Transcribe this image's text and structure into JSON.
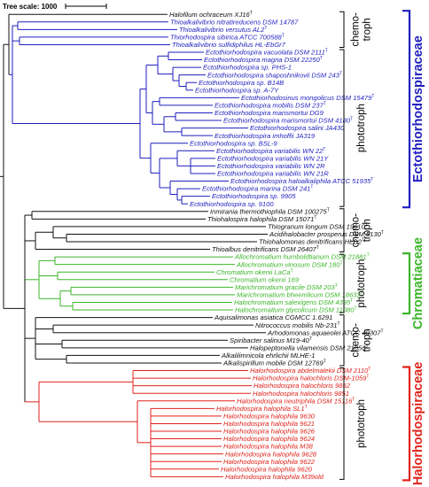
{
  "scale": {
    "label": "Tree scale: 1000"
  },
  "colors": {
    "blue": "#1f1fbf",
    "black": "#111111",
    "green": "#3cb52a",
    "red": "#e0231c"
  },
  "leaves": [
    {
      "name": "Halofilum ochraceum XJ16",
      "sup": "T",
      "color": "black"
    },
    {
      "name": "Thioalkalivibrio nitratireducens DSM 14787",
      "sup": "",
      "color": "blue"
    },
    {
      "name": "Thioalkalivibrio versutus AL2",
      "sup": "T",
      "color": "blue"
    },
    {
      "name": "Thiorhodospira sibirica ATCC 700588",
      "sup": "T",
      "color": "blue"
    },
    {
      "name": "Thioalkalivibrio sulfidiphilus HL-EbGr7",
      "sup": "",
      "color": "blue"
    },
    {
      "name": "Ectothiorhodospira vacuolata DSM 2111",
      "sup": "T",
      "color": "blue"
    },
    {
      "name": "Ectothiorhodospira magna DSM 22250",
      "sup": "T",
      "color": "blue"
    },
    {
      "name": "Ectothiorhodospira sp. PHS-1",
      "sup": "",
      "color": "blue"
    },
    {
      "name": "Ectothiorhodospira shaposhnikovii DSM 243",
      "sup": "T",
      "color": "blue"
    },
    {
      "name": "Ectothiorhodospira sp. B14B",
      "sup": "",
      "color": "blue"
    },
    {
      "name": "Ectothiorhodospira sp. A-7Y",
      "sup": "",
      "color": "blue"
    },
    {
      "name": "Ectothiorhodosinus mongolicus DSM 15479",
      "sup": "T",
      "color": "blue"
    },
    {
      "name": "Ectothiorhodospira mobilis DSM 237",
      "sup": "T",
      "color": "blue"
    },
    {
      "name": "Ectothiorhodospira marismortui DG9",
      "sup": "",
      "color": "blue"
    },
    {
      "name": "Ectothiorhodospira marismortui DSM 4180",
      "sup": "T",
      "color": "blue"
    },
    {
      "name": "Ectothiorhodospira salini JA430",
      "sup": "",
      "color": "blue"
    },
    {
      "name": "Ectothiorhodospira imhoffii JA319",
      "sup": "",
      "color": "blue"
    },
    {
      "name": "Ectothiorhodospira sp. BSL-9",
      "sup": "",
      "color": "blue"
    },
    {
      "name": "Ectothiorhodospira variabilis WN 22",
      "sup": "T",
      "color": "blue"
    },
    {
      "name": "Ectothiorhodospira variabilis WN 21Y",
      "sup": "",
      "color": "blue"
    },
    {
      "name": "Ectothiorhodospira variabilis WN 2R",
      "sup": "",
      "color": "blue"
    },
    {
      "name": "Ectothiorhodospira variabilis WN 21R",
      "sup": "",
      "color": "blue"
    },
    {
      "name": "Ectothiorhodospira haloalkaliphila ATCC 51935",
      "sup": "T",
      "color": "blue"
    },
    {
      "name": "Ectothiorhodospira marina DSM 241",
      "sup": "T",
      "color": "blue"
    },
    {
      "name": "Ectothiorhodospira sp. 9905",
      "sup": "",
      "color": "blue"
    },
    {
      "name": "Ectothiorhodospira sp. 9100",
      "sup": "",
      "color": "blue"
    },
    {
      "name": "Inmirania thermothiophila DSM 100275",
      "sup": "T",
      "color": "black"
    },
    {
      "name": "Thiohalospira halophila DSM 15071",
      "sup": "T",
      "color": "black"
    },
    {
      "name": "Thiogranum longum DSM 19610",
      "sup": "T",
      "color": "black"
    },
    {
      "name": "Acidihalobacter prosperus DSM 5130",
      "sup": "T",
      "color": "black"
    },
    {
      "name": "Thiohalomonas denitrificans HLD2",
      "sup": "T",
      "color": "black"
    },
    {
      "name": "Thioalbus denitrificans DSM 26407",
      "sup": "T",
      "color": "black"
    },
    {
      "name": "Allochromatium humboldtianum DSM 21881",
      "sup": "T",
      "color": "green"
    },
    {
      "name": "Allochromatium vinosum DSM 180",
      "sup": "T",
      "color": "green"
    },
    {
      "name": "Chromatium okenii LaCa",
      "sup": "T",
      "color": "green"
    },
    {
      "name": "Chromatium okenii 169",
      "sup": "",
      "color": "green"
    },
    {
      "name": "Marichromatium gracile DSM 203",
      "sup": "T",
      "color": "green"
    },
    {
      "name": "Marichromatium bheemlicum DSM 18632",
      "sup": "T",
      "color": "green"
    },
    {
      "name": "Halochromatium salexigens DSM 4395",
      "sup": "T",
      "color": "green"
    },
    {
      "name": "Halochromatium glycolicum DSM 11080",
      "sup": "T",
      "color": "green"
    },
    {
      "name": "Aquisalimonas asiatica CGMCC 1.6291",
      "sup": "",
      "color": "black"
    },
    {
      "name": "Nitrococcus mobilis Nb-231",
      "sup": "T",
      "color": "black"
    },
    {
      "name": "Arhodomonas aquaeolei ATCC 49307",
      "sup": "T",
      "color": "black"
    },
    {
      "name": "Spiribacter salinus M19-40",
      "sup": "T",
      "color": "black"
    },
    {
      "name": "Halopeptonella vilamensis DSM 21056",
      "sup": "T",
      "color": "black"
    },
    {
      "name": "Alkalilimnicola ehrlichii MLHE-1",
      "sup": "",
      "color": "black"
    },
    {
      "name": "Alkalispirillum mobile DSM 12769",
      "sup": "T",
      "color": "black"
    },
    {
      "name": "Halorhodospira abdelmalekii DSM 2110",
      "sup": "T",
      "color": "red"
    },
    {
      "name": "Halorhodospira halochloris DSM-1059",
      "sup": "T",
      "color": "red"
    },
    {
      "name": "Halorhodospira halochloris 9852",
      "sup": "",
      "color": "red"
    },
    {
      "name": "Halorhodospira halochloris 9851",
      "sup": "",
      "color": "red"
    },
    {
      "name": "Halorhodospira neutriphila DSM 15116",
      "sup": "T",
      "color": "red"
    },
    {
      "name": "Halorhodospira halophila SL1",
      "sup": "T",
      "color": "red"
    },
    {
      "name": "Halorhodospira halophila 9630",
      "sup": "",
      "color": "red"
    },
    {
      "name": "Halorhodospira halophila 9621",
      "sup": "",
      "color": "red"
    },
    {
      "name": "Halorhodospira halophila 9626",
      "sup": "",
      "color": "red"
    },
    {
      "name": "Halorhodospira halophila 9624",
      "sup": "",
      "color": "red"
    },
    {
      "name": "Halorhodospira halophila M38",
      "sup": "",
      "color": "red"
    },
    {
      "name": "Halorhodospira halophila 9628",
      "sup": "",
      "color": "red"
    },
    {
      "name": "Halorhodospira halophila 9622",
      "sup": "",
      "color": "red"
    },
    {
      "name": "Halorhodospira halophila 9620",
      "sup": "",
      "color": "red"
    },
    {
      "name": "Halorhodospira halophila M39old",
      "sup": "",
      "color": "red"
    }
  ],
  "groups": [
    {
      "type_lines": [
        "chemo-",
        "troph"
      ],
      "from": 0,
      "to": 4
    },
    {
      "type_lines": [
        "phototroph"
      ],
      "from": 5,
      "to": 25
    },
    {
      "type_lines": [
        "chemo-",
        "troph"
      ],
      "from": 26,
      "to": 31
    },
    {
      "type_lines": [
        "phototroph"
      ],
      "from": 32,
      "to": 39
    },
    {
      "type_lines": [
        "chemo-",
        "troph"
      ],
      "from": 40,
      "to": 46
    },
    {
      "type_lines": [
        "phototroph"
      ],
      "from": 47,
      "to": 61
    }
  ],
  "families": [
    {
      "name": "Ectothiorhodospiraceae",
      "color": "blue",
      "from": 0,
      "to": 25
    },
    {
      "name": "Chromatiaceae",
      "color": "green",
      "from": 32,
      "to": 39
    },
    {
      "name": "Halorhodospiraceae",
      "color": "red",
      "from": 47,
      "to": 61
    }
  ]
}
